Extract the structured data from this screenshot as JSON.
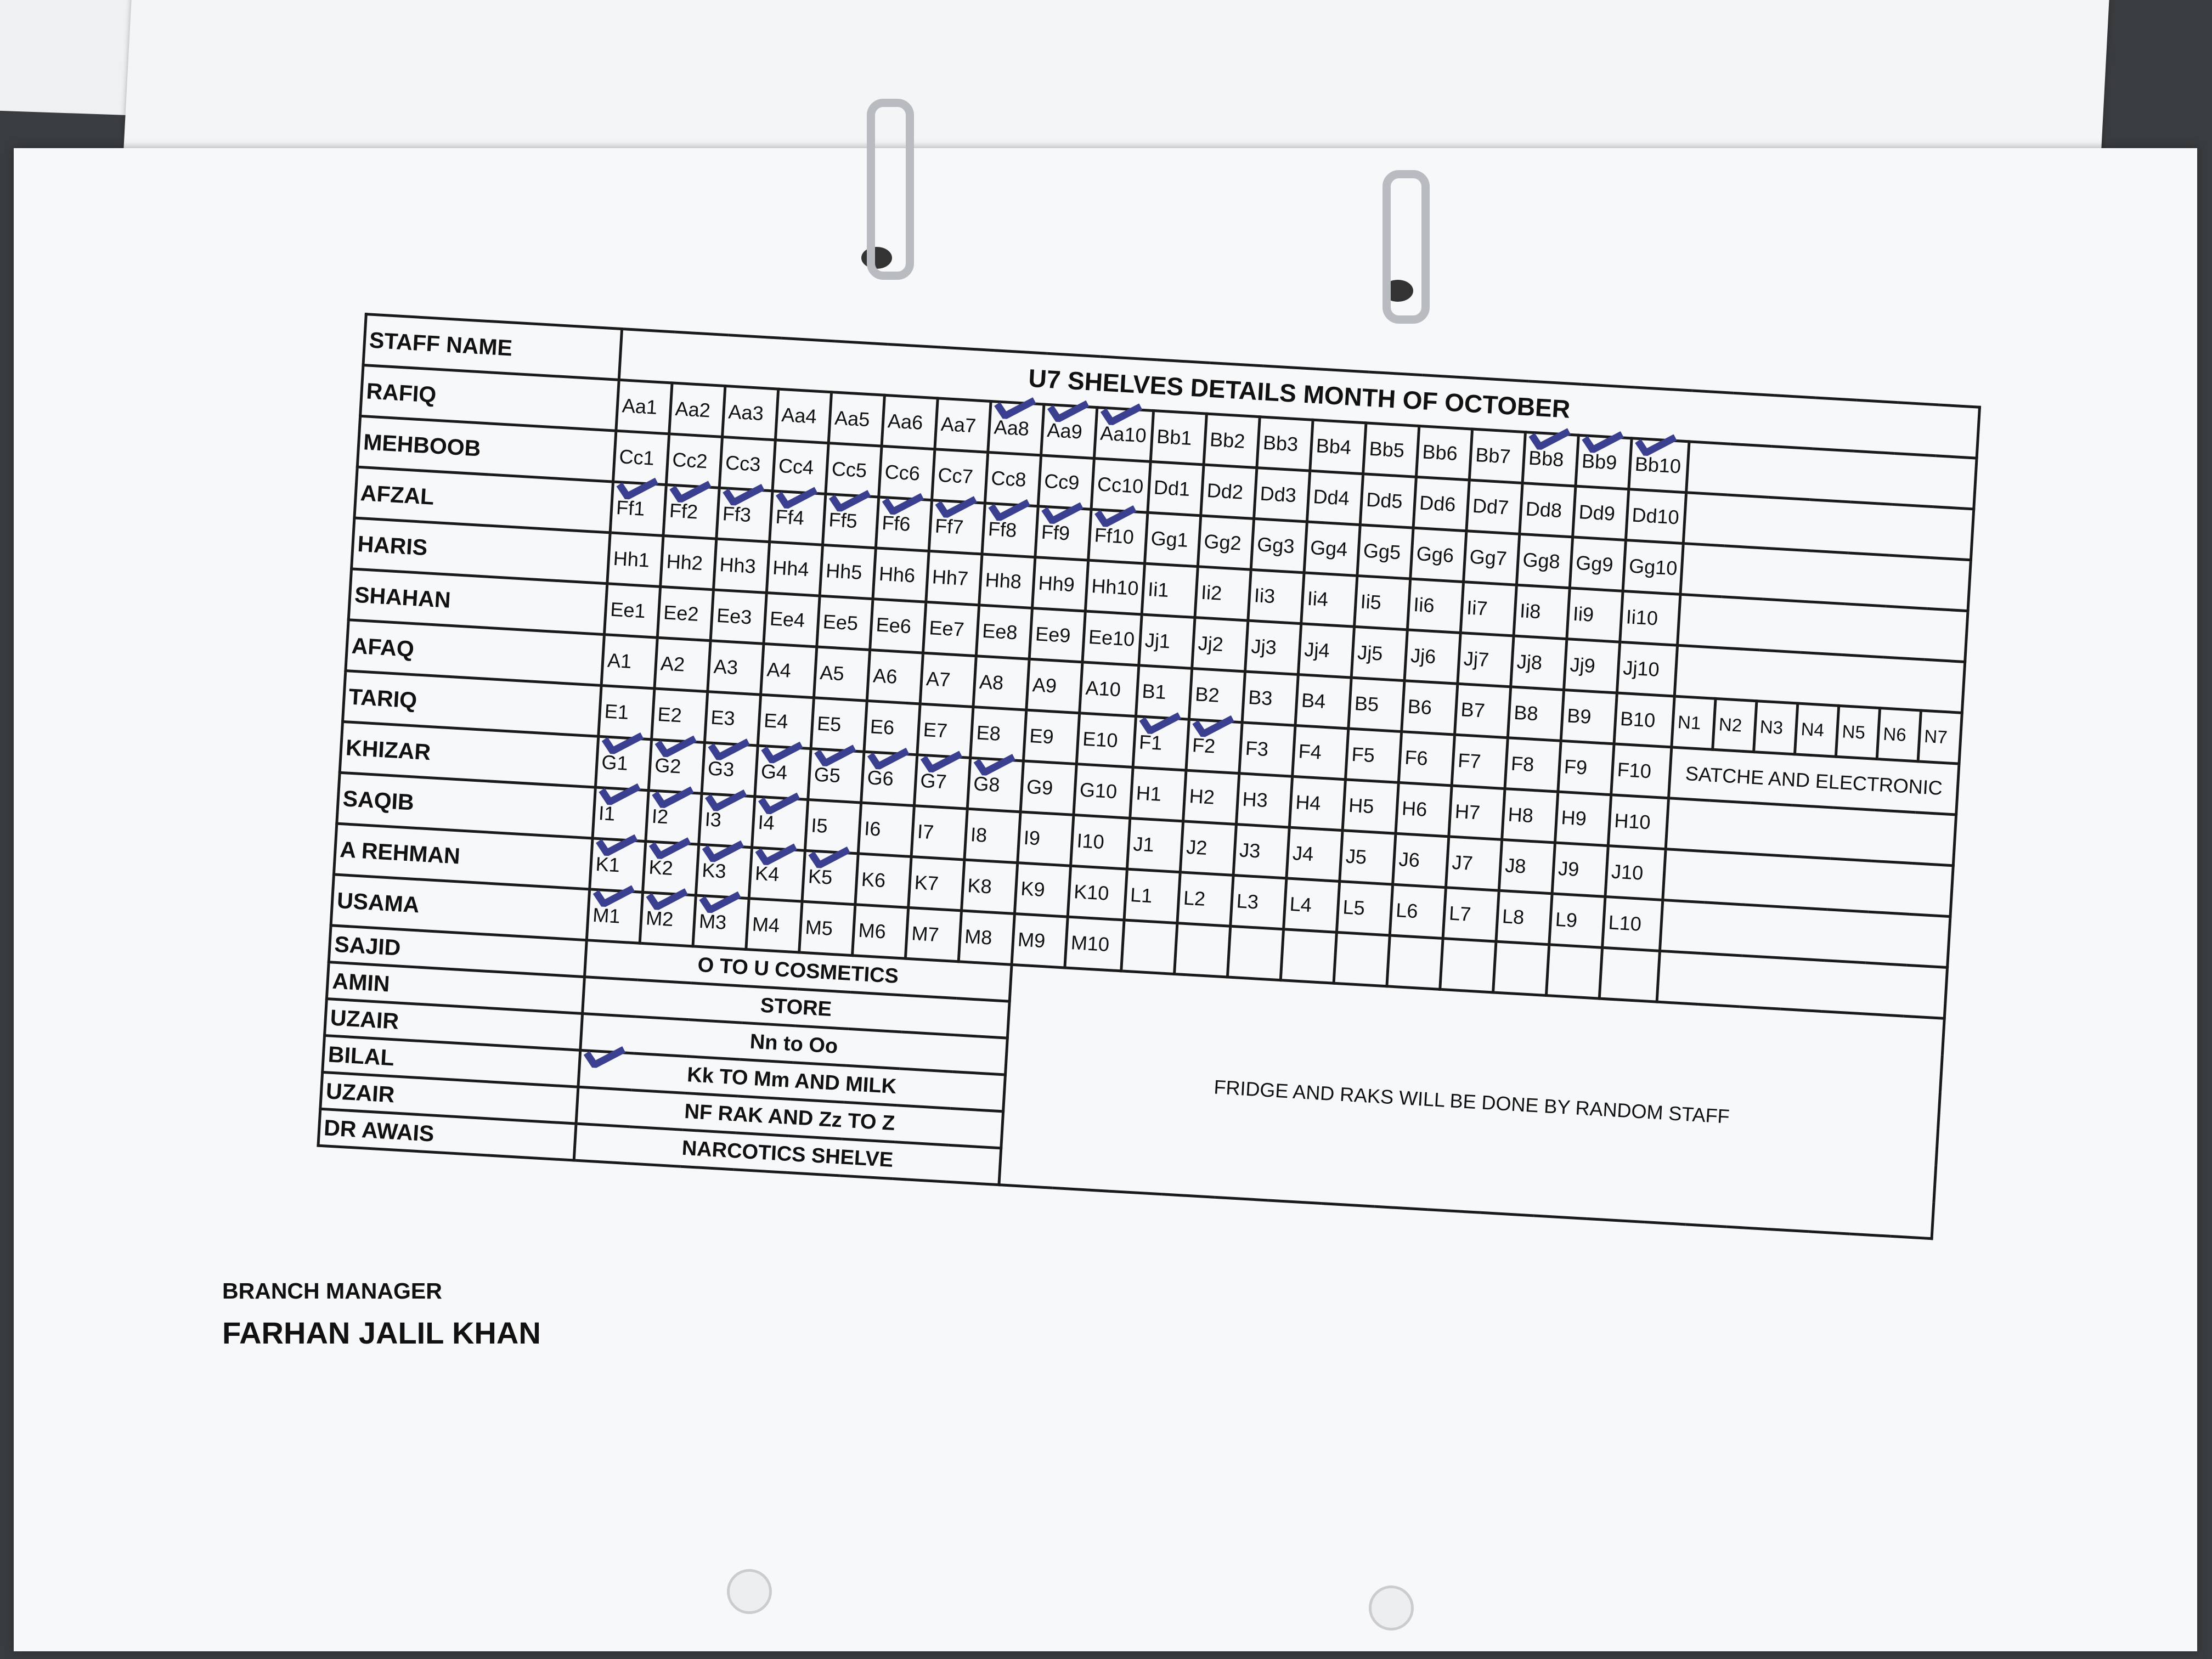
{
  "header": {
    "staff_name_label": "STAFF NAME",
    "title": "U7 SHELVES DETAILS MONTH OF OCTOBER"
  },
  "rows": [
    {
      "name": "RAFIQ",
      "cells": [
        "Aa1",
        "Aa2",
        "Aa3",
        "Aa4",
        "Aa5",
        "Aa6",
        "Aa7",
        "Aa8",
        "Aa9",
        "Aa10",
        "Bb1",
        "Bb2",
        "Bb3",
        "Bb4",
        "Bb5",
        "Bb6",
        "Bb7",
        "Bb8",
        "Bb9",
        "Bb10"
      ]
    },
    {
      "name": "MEHBOOB",
      "cells": [
        "Cc1",
        "Cc2",
        "Cc3",
        "Cc4",
        "Cc5",
        "Cc6",
        "Cc7",
        "Cc8",
        "Cc9",
        "Cc10",
        "Dd1",
        "Dd2",
        "Dd3",
        "Dd4",
        "Dd5",
        "Dd6",
        "Dd7",
        "Dd8",
        "Dd9",
        "Dd10"
      ]
    },
    {
      "name": "AFZAL",
      "cells": [
        "Ff1",
        "Ff2",
        "Ff3",
        "Ff4",
        "Ff5",
        "Ff6",
        "Ff7",
        "Ff8",
        "Ff9",
        "Ff10",
        "Gg1",
        "Gg2",
        "Gg3",
        "Gg4",
        "Gg5",
        "Gg6",
        "Gg7",
        "Gg8",
        "Gg9",
        "Gg10"
      ]
    },
    {
      "name": "HARIS",
      "cells": [
        "Hh1",
        "Hh2",
        "Hh3",
        "Hh4",
        "Hh5",
        "Hh6",
        "Hh7",
        "Hh8",
        "Hh9",
        "Hh10",
        "Ii1",
        "Ii2",
        "Ii3",
        "Ii4",
        "Ii5",
        "Ii6",
        "Ii7",
        "Ii8",
        "Ii9",
        "Ii10"
      ]
    },
    {
      "name": "SHAHAN",
      "cells": [
        "Ee1",
        "Ee2",
        "Ee3",
        "Ee4",
        "Ee5",
        "Ee6",
        "Ee7",
        "Ee8",
        "Ee9",
        "Ee10",
        "Jj1",
        "Jj2",
        "Jj3",
        "Jj4",
        "Jj5",
        "Jj6",
        "Jj7",
        "Jj8",
        "Jj9",
        "Jj10"
      ]
    },
    {
      "name": "AFAQ",
      "cells": [
        "A1",
        "A2",
        "A3",
        "A4",
        "A5",
        "A6",
        "A7",
        "A8",
        "A9",
        "A10",
        "B1",
        "B2",
        "B3",
        "B4",
        "B5",
        "B6",
        "B7",
        "B8",
        "B9",
        "B10"
      ],
      "extra": [
        "N1",
        "N2",
        "N3",
        "N4",
        "N5",
        "N6",
        "N7"
      ]
    },
    {
      "name": "TARIQ",
      "cells": [
        "E1",
        "E2",
        "E3",
        "E4",
        "E5",
        "E6",
        "E7",
        "E8",
        "E9",
        "E10",
        "F1",
        "F2",
        "F3",
        "F4",
        "F5",
        "F6",
        "F7",
        "F8",
        "F9",
        "F10"
      ],
      "extra_text": "SATCHE AND ELECTRONIC"
    },
    {
      "name": "KHIZAR",
      "cells": [
        "G1",
        "G2",
        "G3",
        "G4",
        "G5",
        "G6",
        "G7",
        "G8",
        "G9",
        "G10",
        "H1",
        "H2",
        "H3",
        "H4",
        "H5",
        "H6",
        "H7",
        "H8",
        "H9",
        "H10"
      ]
    },
    {
      "name": "SAQIB",
      "cells": [
        "I1",
        "I2",
        "I3",
        "I4",
        "I5",
        "I6",
        "I7",
        "I8",
        "I9",
        "I10",
        "J1",
        "J2",
        "J3",
        "J4",
        "J5",
        "J6",
        "J7",
        "J8",
        "J9",
        "J10"
      ]
    },
    {
      "name": "A REHMAN",
      "cells": [
        "K1",
        "K2",
        "K3",
        "K4",
        "K5",
        "K6",
        "K7",
        "K8",
        "K9",
        "K10",
        "L1",
        "L2",
        "L3",
        "L4",
        "L5",
        "L6",
        "L7",
        "L8",
        "L9",
        "L10"
      ]
    },
    {
      "name": "USAMA",
      "cells": [
        "M1",
        "M2",
        "M3",
        "M4",
        "M5",
        "M6",
        "M7",
        "M8",
        "M9",
        "M10"
      ]
    }
  ],
  "tasks": [
    {
      "name": "SAJID",
      "task": "O TO U COSMETICS"
    },
    {
      "name": "AMIN",
      "task": "STORE"
    },
    {
      "name": "UZAIR",
      "task": "Nn to Oo"
    },
    {
      "name": "BILAL",
      "task": "Kk TO Mm AND MILK",
      "checked": true
    },
    {
      "name": "UZAIR",
      "task": "NF RAK AND Zz TO Z"
    },
    {
      "name": "DR AWAIS",
      "task": "NARCOTICS SHELVE"
    }
  ],
  "note": "FRIDGE AND RAKS WILL BE DONE BY RANDOM STAFF",
  "checked_cells": [
    "Aa8",
    "Aa9",
    "Aa10",
    "Bb8",
    "Bb9",
    "Bb10",
    "Ff1",
    "Ff2",
    "Ff3",
    "Ff4",
    "Ff5",
    "Ff6",
    "Ff7",
    "Ff8",
    "Ff9",
    "Ff10",
    "F1",
    "F2",
    "G1",
    "G2",
    "G3",
    "G4",
    "G5",
    "G6",
    "G7",
    "G8",
    "I1",
    "I2",
    "I3",
    "I4",
    "K1",
    "K2",
    "K3",
    "K4",
    "K5",
    "M1",
    "M2",
    "M3"
  ],
  "footer": {
    "role": "BRANCH MANAGER",
    "manager_name": "FARHAN JALIL KHAN"
  },
  "colors": {
    "ink": "#1a1a1a",
    "pen": "#3b3f8f",
    "paper": "#f7f8fa"
  }
}
